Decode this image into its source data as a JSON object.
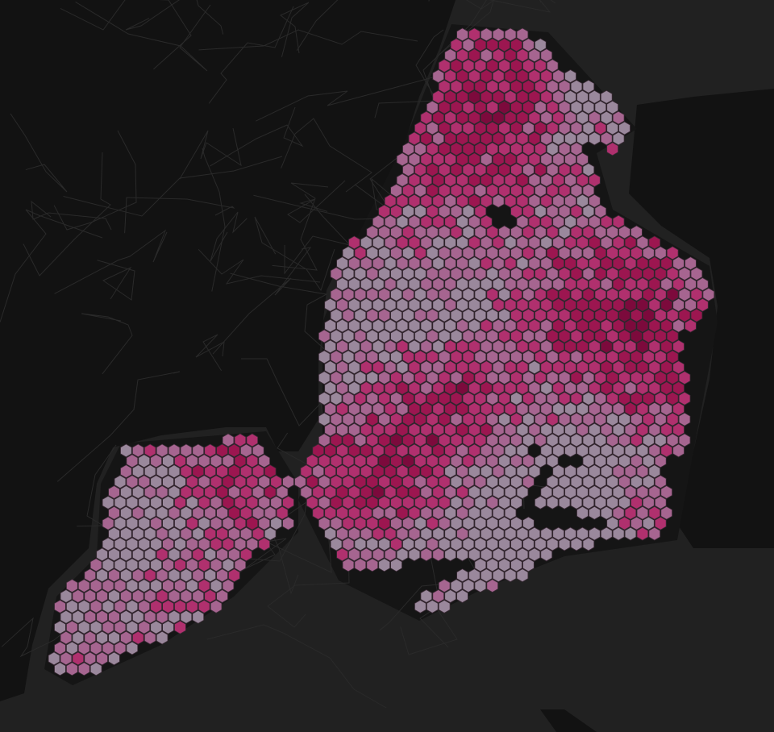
{
  "map": {
    "basemap_style": "dark",
    "colors": {
      "water": "#212121",
      "land": "#121212",
      "roads": "#2a2a2a",
      "hex_stroke": "#3a2a35"
    },
    "layer": {
      "type": "hexbin",
      "orientation": "pointy-top",
      "color_scale": [
        "#9a889c",
        "#a66590",
        "#b0306e",
        "#9c1650",
        "#7c0a3c"
      ]
    }
  }
}
